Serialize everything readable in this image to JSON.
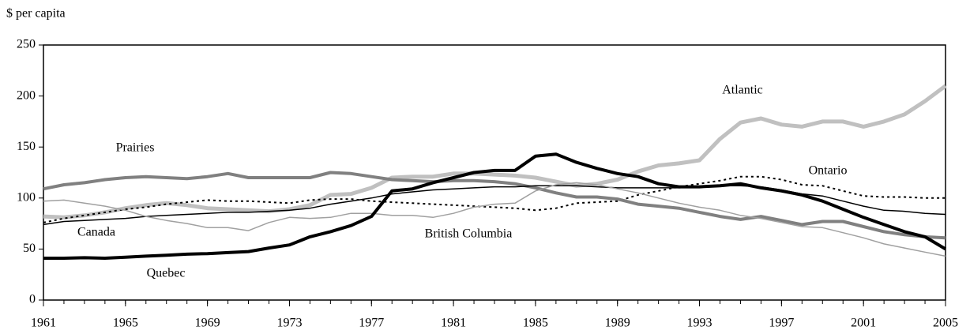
{
  "chart_data": {
    "type": "line",
    "y_axis_label": "$ per capita",
    "x": [
      1961,
      1962,
      1963,
      1964,
      1965,
      1966,
      1967,
      1968,
      1969,
      1970,
      1971,
      1972,
      1973,
      1974,
      1975,
      1976,
      1977,
      1978,
      1979,
      1980,
      1981,
      1982,
      1983,
      1984,
      1985,
      1986,
      1987,
      1988,
      1989,
      1990,
      1991,
      1992,
      1993,
      1994,
      1995,
      1996,
      1997,
      1998,
      1999,
      2000,
      2001,
      2002,
      2003,
      2004,
      2005
    ],
    "xlim": [
      1961,
      2005
    ],
    "xticks": [
      1961,
      1965,
      1969,
      1973,
      1977,
      1981,
      1985,
      1989,
      1993,
      1997,
      2001,
      2005
    ],
    "ylim": [
      0,
      250
    ],
    "yticks": [
      0,
      50,
      100,
      150,
      200,
      250
    ],
    "series": [
      {
        "name": "Atlantic",
        "color": "#c0c0c0",
        "width": 5,
        "dashed": false,
        "values": [
          82,
          81,
          83,
          86,
          90,
          93,
          95,
          93,
          90,
          89,
          88,
          87,
          89,
          93,
          103,
          104,
          110,
          120,
          121,
          121,
          124,
          124,
          123,
          122,
          120,
          116,
          112,
          114,
          118,
          126,
          132,
          134,
          137,
          158,
          174,
          178,
          172,
          170,
          175,
          175,
          170,
          175,
          182,
          195,
          210
        ]
      },
      {
        "name": "Ontario",
        "color": "#000000",
        "width": 2,
        "dashed": true,
        "values": [
          76,
          80,
          83,
          86,
          89,
          91,
          94,
          96,
          98,
          97,
          97,
          96,
          95,
          98,
          99,
          99,
          97,
          96,
          95,
          94,
          93,
          92,
          91,
          90,
          88,
          90,
          95,
          96,
          97,
          103,
          107,
          111,
          114,
          117,
          121,
          121,
          118,
          113,
          112,
          107,
          102,
          101,
          101,
          100,
          100
        ]
      },
      {
        "name": "Prairies",
        "color": "#808080",
        "width": 4,
        "dashed": false,
        "values": [
          109,
          113,
          115,
          118,
          120,
          121,
          120,
          119,
          121,
          124,
          120,
          120,
          120,
          120,
          125,
          124,
          121,
          118,
          117,
          116,
          117,
          117,
          116,
          114,
          110,
          105,
          101,
          101,
          99,
          94,
          92,
          90,
          86,
          82,
          79,
          82,
          78,
          74,
          77,
          77,
          72,
          67,
          64,
          62,
          61
        ]
      },
      {
        "name": "Canada",
        "color": "#000000",
        "width": 1.5,
        "dashed": false,
        "values": [
          74,
          77,
          78,
          79,
          80,
          82,
          83,
          84,
          85,
          86,
          86,
          87,
          88,
          90,
          94,
          97,
          100,
          104,
          106,
          108,
          109,
          110,
          111,
          111,
          112,
          112,
          112,
          111,
          110,
          110,
          110,
          110,
          111,
          112,
          112,
          111,
          108,
          104,
          102,
          97,
          92,
          88,
          87,
          85,
          84
        ]
      },
      {
        "name": "British Columbia",
        "color": "#a0a0a0",
        "width": 1.5,
        "dashed": false,
        "values": [
          97,
          98,
          95,
          92,
          88,
          82,
          78,
          75,
          71,
          71,
          68,
          76,
          81,
          80,
          81,
          85,
          85,
          83,
          83,
          81,
          85,
          91,
          94,
          95,
          107,
          113,
          115,
          113,
          109,
          105,
          100,
          95,
          91,
          88,
          83,
          80,
          76,
          72,
          71,
          66,
          61,
          55,
          51,
          47,
          43
        ]
      },
      {
        "name": "Quebec",
        "color": "#000000",
        "width": 4,
        "dashed": false,
        "values": [
          41,
          41,
          41.5,
          41,
          42,
          43,
          44,
          45,
          45.5,
          46.5,
          47.5,
          51,
          54,
          62,
          67,
          73,
          82,
          107,
          109,
          115,
          120,
          125,
          127,
          127,
          141,
          143,
          135,
          129,
          124,
          121,
          114,
          111,
          111,
          112,
          114,
          110,
          107,
          103,
          97,
          89,
          81,
          74,
          67,
          62,
          50
        ]
      }
    ]
  }
}
